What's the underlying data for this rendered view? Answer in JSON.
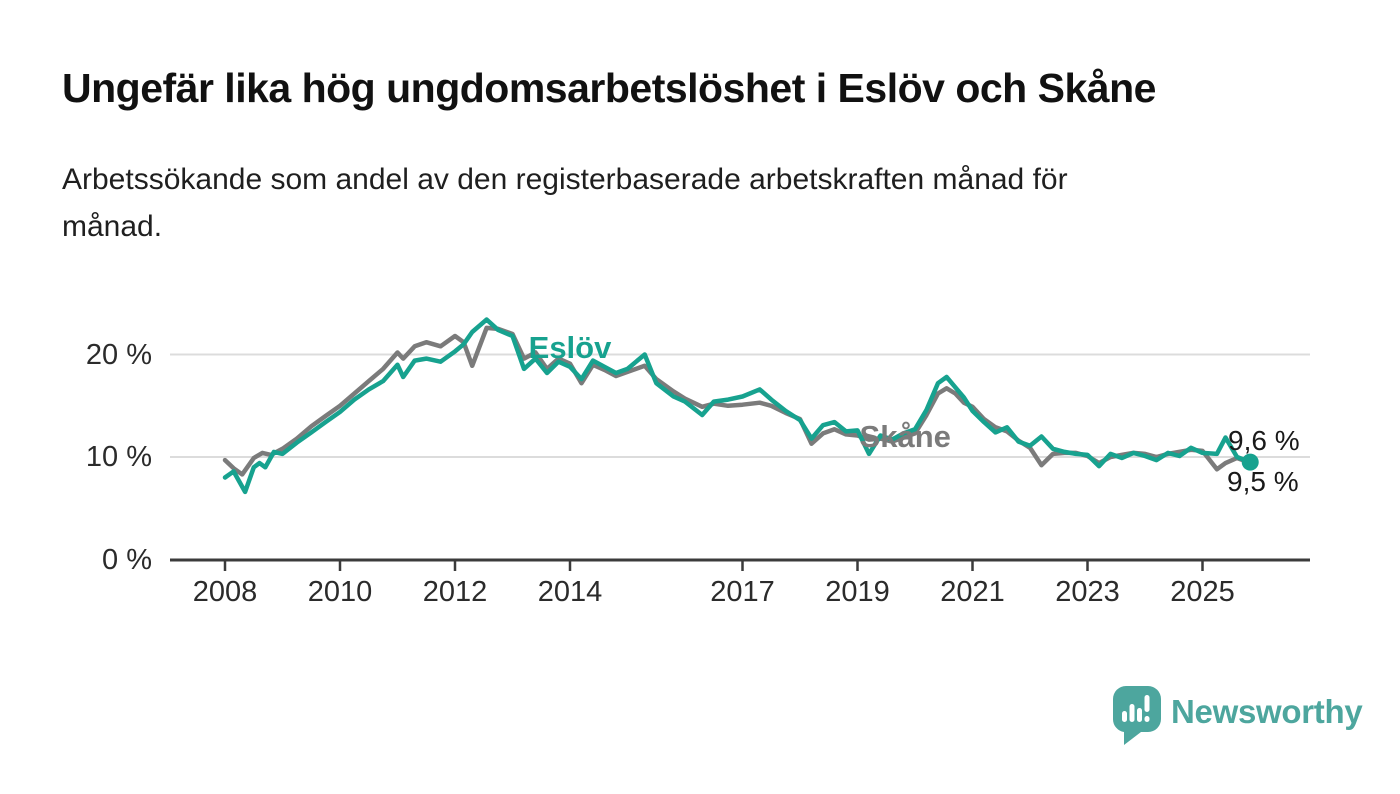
{
  "title": "Ungefär lika hög ungdomsarbetslöshet i Eslöv och Skåne",
  "subtitle_lines": [
    "Arbetssökande som andel av den registerbaserade arbetskraften månad för",
    "månad."
  ],
  "colors": {
    "eslov": "#17a28f",
    "skane": "#7b7b7b",
    "grid": "#dcdcdc",
    "axis": "#3b3b3b",
    "text": "#1a1a1a",
    "logo": "#4da69e"
  },
  "branding": {
    "logo_text": "Newsworthy",
    "logo_icon": "speech-bubble-bar-chart-icon"
  },
  "chart_data": {
    "type": "line",
    "unit": "%",
    "grid": "horizontal",
    "xlim": [
      2007.9,
      2026.3
    ],
    "ylim": [
      0,
      25
    ],
    "x_ticks": [
      2008,
      2010,
      2012,
      2014,
      2017,
      2019,
      2021,
      2023,
      2025
    ],
    "y_ticks": [
      {
        "value": 0,
        "label": "0 %"
      },
      {
        "value": 10,
        "label": "10 %"
      },
      {
        "value": 20,
        "label": "20 %"
      }
    ],
    "series": [
      {
        "name": "Skåne",
        "label": "Skåne",
        "label_pos": [
          2019.83,
          11.95
        ],
        "end_label": "9,6 %",
        "end_value": 9.6,
        "end_dot": false,
        "points": [
          [
            2008,
            9.7
          ],
          [
            2008.15,
            8.9
          ],
          [
            2008.3,
            8.3
          ],
          [
            2008.5,
            9.9
          ],
          [
            2008.65,
            10.4
          ],
          [
            2008.8,
            10.2
          ],
          [
            2009,
            10.8
          ],
          [
            2009.25,
            11.8
          ],
          [
            2009.5,
            13.0
          ],
          [
            2009.75,
            14.0
          ],
          [
            2010,
            15.0
          ],
          [
            2010.25,
            16.2
          ],
          [
            2010.5,
            17.4
          ],
          [
            2010.75,
            18.6
          ],
          [
            2011,
            20.2
          ],
          [
            2011.1,
            19.6
          ],
          [
            2011.3,
            20.8
          ],
          [
            2011.5,
            21.2
          ],
          [
            2011.75,
            20.8
          ],
          [
            2012,
            21.8
          ],
          [
            2012.15,
            21.2
          ],
          [
            2012.3,
            18.9
          ],
          [
            2012.55,
            22.6
          ],
          [
            2012.75,
            22.5
          ],
          [
            2013,
            22.0
          ],
          [
            2013.2,
            19.6
          ],
          [
            2013.4,
            20.2
          ],
          [
            2013.6,
            18.6
          ],
          [
            2013.8,
            19.6
          ],
          [
            2014,
            19.1
          ],
          [
            2014.2,
            17.2
          ],
          [
            2014.4,
            19.0
          ],
          [
            2014.6,
            18.5
          ],
          [
            2014.8,
            17.9
          ],
          [
            2015,
            18.3
          ],
          [
            2015.3,
            18.9
          ],
          [
            2015.5,
            17.6
          ],
          [
            2015.8,
            16.4
          ],
          [
            2016,
            15.7
          ],
          [
            2016.3,
            14.9
          ],
          [
            2016.5,
            15.2
          ],
          [
            2016.75,
            15.0
          ],
          [
            2017,
            15.1
          ],
          [
            2017.3,
            15.3
          ],
          [
            2017.5,
            15.0
          ],
          [
            2017.75,
            14.3
          ],
          [
            2018,
            13.7
          ],
          [
            2018.2,
            11.3
          ],
          [
            2018.4,
            12.3
          ],
          [
            2018.6,
            12.7
          ],
          [
            2018.8,
            12.2
          ],
          [
            2019,
            12.1
          ],
          [
            2019.2,
            11.7
          ],
          [
            2019.4,
            11.8
          ],
          [
            2019.6,
            11.5
          ],
          [
            2019.8,
            11.9
          ],
          [
            2020,
            12.3
          ],
          [
            2020.2,
            14.1
          ],
          [
            2020.4,
            16.2
          ],
          [
            2020.55,
            16.7
          ],
          [
            2020.7,
            16.2
          ],
          [
            2020.85,
            15.3
          ],
          [
            2021,
            14.9
          ],
          [
            2021.2,
            13.7
          ],
          [
            2021.4,
            12.9
          ],
          [
            2021.6,
            12.5
          ],
          [
            2021.8,
            11.6
          ],
          [
            2022,
            10.9
          ],
          [
            2022.2,
            9.2
          ],
          [
            2022.4,
            10.3
          ],
          [
            2022.6,
            10.4
          ],
          [
            2022.8,
            10.4
          ],
          [
            2023,
            10.1
          ],
          [
            2023.2,
            9.4
          ],
          [
            2023.4,
            10.0
          ],
          [
            2023.6,
            10.2
          ],
          [
            2023.8,
            10.4
          ],
          [
            2024,
            10.3
          ],
          [
            2024.2,
            10.0
          ],
          [
            2024.4,
            10.3
          ],
          [
            2024.6,
            10.5
          ],
          [
            2024.8,
            10.7
          ],
          [
            2025,
            10.6
          ],
          [
            2025.25,
            8.8
          ],
          [
            2025.4,
            9.4
          ],
          [
            2025.6,
            9.9
          ],
          [
            2025.75,
            9.6
          ]
        ]
      },
      {
        "name": "Eslöv",
        "label": "Eslöv",
        "label_pos": [
          2014.0,
          20.6
        ],
        "end_label": "9,5 %",
        "end_value": 9.5,
        "end_dot": true,
        "points": [
          [
            2008,
            8.0
          ],
          [
            2008.15,
            8.6
          ],
          [
            2008.35,
            6.6
          ],
          [
            2008.5,
            9.0
          ],
          [
            2008.6,
            9.4
          ],
          [
            2008.7,
            9.0
          ],
          [
            2008.85,
            10.5
          ],
          [
            2009,
            10.3
          ],
          [
            2009.25,
            11.4
          ],
          [
            2009.5,
            12.4
          ],
          [
            2009.75,
            13.4
          ],
          [
            2010,
            14.4
          ],
          [
            2010.25,
            15.6
          ],
          [
            2010.5,
            16.6
          ],
          [
            2010.75,
            17.4
          ],
          [
            2011,
            19.0
          ],
          [
            2011.1,
            17.8
          ],
          [
            2011.3,
            19.4
          ],
          [
            2011.5,
            19.6
          ],
          [
            2011.75,
            19.3
          ],
          [
            2012,
            20.3
          ],
          [
            2012.15,
            21.0
          ],
          [
            2012.3,
            22.2
          ],
          [
            2012.55,
            23.4
          ],
          [
            2012.75,
            22.4
          ],
          [
            2013,
            21.8
          ],
          [
            2013.2,
            18.6
          ],
          [
            2013.4,
            19.6
          ],
          [
            2013.6,
            18.2
          ],
          [
            2013.8,
            19.3
          ],
          [
            2014,
            18.8
          ],
          [
            2014.2,
            17.6
          ],
          [
            2014.4,
            19.4
          ],
          [
            2014.6,
            18.8
          ],
          [
            2014.8,
            18.2
          ],
          [
            2015,
            18.6
          ],
          [
            2015.3,
            20.0
          ],
          [
            2015.5,
            17.2
          ],
          [
            2015.8,
            15.9
          ],
          [
            2016,
            15.4
          ],
          [
            2016.3,
            14.1
          ],
          [
            2016.5,
            15.4
          ],
          [
            2016.75,
            15.6
          ],
          [
            2017,
            15.9
          ],
          [
            2017.3,
            16.6
          ],
          [
            2017.5,
            15.6
          ],
          [
            2017.75,
            14.5
          ],
          [
            2018,
            13.6
          ],
          [
            2018.2,
            11.8
          ],
          [
            2018.4,
            13.1
          ],
          [
            2018.6,
            13.4
          ],
          [
            2018.8,
            12.5
          ],
          [
            2019,
            12.6
          ],
          [
            2019.2,
            10.3
          ],
          [
            2019.4,
            12.1
          ],
          [
            2019.6,
            11.7
          ],
          [
            2019.8,
            12.3
          ],
          [
            2020,
            12.7
          ],
          [
            2020.2,
            14.6
          ],
          [
            2020.4,
            17.2
          ],
          [
            2020.55,
            17.8
          ],
          [
            2020.7,
            16.8
          ],
          [
            2020.85,
            15.8
          ],
          [
            2021,
            14.5
          ],
          [
            2021.2,
            13.4
          ],
          [
            2021.4,
            12.4
          ],
          [
            2021.6,
            12.9
          ],
          [
            2021.8,
            11.5
          ],
          [
            2022,
            11.1
          ],
          [
            2022.2,
            12.0
          ],
          [
            2022.4,
            10.8
          ],
          [
            2022.6,
            10.5
          ],
          [
            2022.8,
            10.3
          ],
          [
            2023,
            10.2
          ],
          [
            2023.2,
            9.1
          ],
          [
            2023.4,
            10.3
          ],
          [
            2023.6,
            9.9
          ],
          [
            2023.8,
            10.4
          ],
          [
            2024,
            10.1
          ],
          [
            2024.2,
            9.7
          ],
          [
            2024.4,
            10.4
          ],
          [
            2024.6,
            10.1
          ],
          [
            2024.8,
            10.9
          ],
          [
            2025,
            10.4
          ],
          [
            2025.25,
            10.3
          ],
          [
            2025.4,
            11.9
          ],
          [
            2025.6,
            10.0
          ],
          [
            2025.83,
            9.5
          ]
        ]
      }
    ]
  }
}
